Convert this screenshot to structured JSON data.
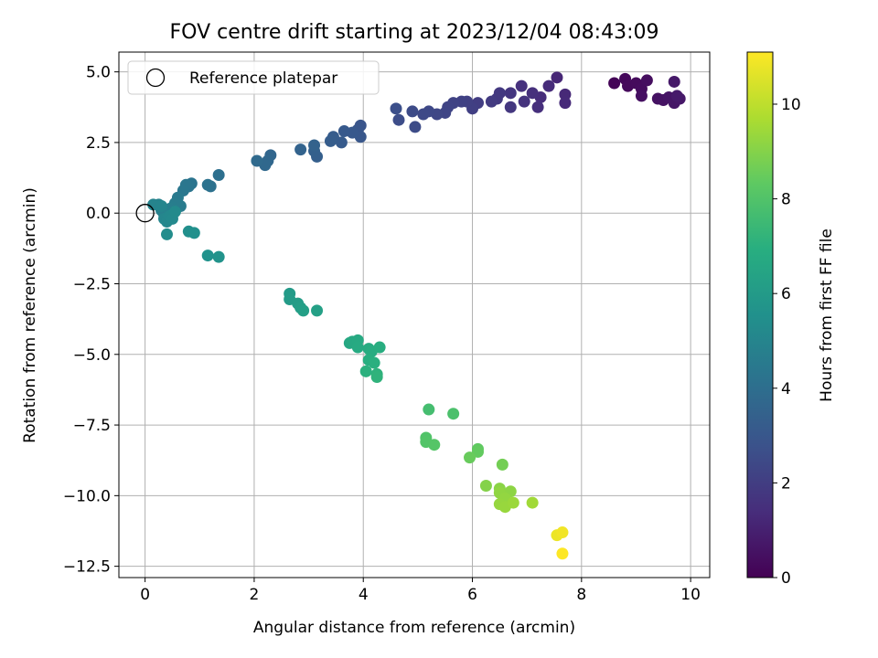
{
  "chart_data": {
    "type": "scatter",
    "title": "FOV centre drift starting at 2023/12/04 08:43:09",
    "xlabel": "Angular distance from reference (arcmin)",
    "ylabel": "Rotation from reference (arcmin)",
    "colorbar_label": "Hours from first FF file",
    "xlim": [
      -0.48,
      10.35
    ],
    "ylim": [
      -12.9,
      5.7
    ],
    "clim": [
      0,
      11.1
    ],
    "x_ticks": [
      0,
      2,
      4,
      6,
      8,
      10
    ],
    "y_ticks": [
      5.0,
      2.5,
      0.0,
      -2.5,
      -5.0,
      -7.5,
      -10.0,
      -12.5
    ],
    "x_tick_labels": [
      "0",
      "2",
      "4",
      "6",
      "8",
      "10"
    ],
    "y_tick_labels": [
      "5.0",
      "2.5",
      "0.0",
      "−2.5",
      "−5.0",
      "−7.5",
      "−10.0",
      "−12.5"
    ],
    "colorbar_ticks": [
      0,
      2,
      4,
      6,
      8,
      10
    ],
    "colorbar_tick_labels": [
      "0",
      "2",
      "4",
      "6",
      "8",
      "10"
    ],
    "colormap": "viridis",
    "grid": true,
    "legend": {
      "location": "upper-left",
      "entries": [
        "Reference platepar"
      ]
    },
    "reference_point": {
      "x": 0.0,
      "y": 0.0,
      "marker": "open-circle"
    },
    "series": [
      {
        "marker": "filled-circle",
        "points": [
          {
            "x": 8.6,
            "y": 4.6,
            "t": 0.1
          },
          {
            "x": 8.8,
            "y": 4.75,
            "t": 0.2
          },
          {
            "x": 8.85,
            "y": 4.5,
            "t": 0.25
          },
          {
            "x": 9.0,
            "y": 4.6,
            "t": 0.3
          },
          {
            "x": 9.1,
            "y": 4.4,
            "t": 0.35
          },
          {
            "x": 9.2,
            "y": 4.7,
            "t": 0.4
          },
          {
            "x": 9.1,
            "y": 4.15,
            "t": 0.45
          },
          {
            "x": 9.4,
            "y": 4.05,
            "t": 0.5
          },
          {
            "x": 9.5,
            "y": 4.0,
            "t": 0.55
          },
          {
            "x": 9.6,
            "y": 4.1,
            "t": 0.6
          },
          {
            "x": 9.7,
            "y": 3.9,
            "t": 0.65
          },
          {
            "x": 9.8,
            "y": 4.05,
            "t": 0.7
          },
          {
            "x": 9.7,
            "y": 4.65,
            "t": 0.75
          },
          {
            "x": 9.75,
            "y": 4.15,
            "t": 0.8
          },
          {
            "x": 7.55,
            "y": 4.8,
            "t": 1.2
          },
          {
            "x": 7.7,
            "y": 4.2,
            "t": 1.25
          },
          {
            "x": 7.7,
            "y": 3.9,
            "t": 1.3
          },
          {
            "x": 7.4,
            "y": 4.5,
            "t": 1.35
          },
          {
            "x": 7.25,
            "y": 4.1,
            "t": 1.4
          },
          {
            "x": 7.2,
            "y": 3.75,
            "t": 1.45
          },
          {
            "x": 7.1,
            "y": 4.25,
            "t": 1.5
          },
          {
            "x": 6.9,
            "y": 4.5,
            "t": 1.55
          },
          {
            "x": 6.95,
            "y": 3.95,
            "t": 1.6
          },
          {
            "x": 6.7,
            "y": 4.25,
            "t": 1.7
          },
          {
            "x": 6.7,
            "y": 3.75,
            "t": 1.75
          },
          {
            "x": 6.5,
            "y": 4.25,
            "t": 1.8
          },
          {
            "x": 6.45,
            "y": 4.05,
            "t": 1.85
          },
          {
            "x": 6.35,
            "y": 3.95,
            "t": 1.9
          },
          {
            "x": 6.1,
            "y": 3.9,
            "t": 2.0
          },
          {
            "x": 6.0,
            "y": 3.7,
            "t": 2.05
          },
          {
            "x": 5.9,
            "y": 3.95,
            "t": 2.1
          },
          {
            "x": 5.8,
            "y": 3.95,
            "t": 2.15
          },
          {
            "x": 5.65,
            "y": 3.9,
            "t": 2.2
          },
          {
            "x": 5.55,
            "y": 3.75,
            "t": 2.25
          },
          {
            "x": 5.5,
            "y": 3.55,
            "t": 2.3
          },
          {
            "x": 5.35,
            "y": 3.5,
            "t": 2.35
          },
          {
            "x": 5.2,
            "y": 3.6,
            "t": 2.4
          },
          {
            "x": 5.1,
            "y": 3.5,
            "t": 2.45
          },
          {
            "x": 4.9,
            "y": 3.6,
            "t": 2.5
          },
          {
            "x": 4.95,
            "y": 3.05,
            "t": 2.55
          },
          {
            "x": 4.65,
            "y": 3.3,
            "t": 2.6
          },
          {
            "x": 4.6,
            "y": 3.7,
            "t": 2.65
          },
          {
            "x": 3.95,
            "y": 3.1,
            "t": 2.9
          },
          {
            "x": 3.9,
            "y": 2.95,
            "t": 2.95
          },
          {
            "x": 3.95,
            "y": 2.7,
            "t": 3.0
          },
          {
            "x": 3.8,
            "y": 2.85,
            "t": 3.05
          },
          {
            "x": 3.65,
            "y": 2.9,
            "t": 3.1
          },
          {
            "x": 3.6,
            "y": 2.5,
            "t": 3.15
          },
          {
            "x": 3.45,
            "y": 2.7,
            "t": 3.2
          },
          {
            "x": 3.4,
            "y": 2.55,
            "t": 3.25
          },
          {
            "x": 3.15,
            "y": 2.0,
            "t": 3.35
          },
          {
            "x": 3.1,
            "y": 2.2,
            "t": 3.4
          },
          {
            "x": 3.1,
            "y": 2.4,
            "t": 3.45
          },
          {
            "x": 2.85,
            "y": 2.25,
            "t": 3.5
          },
          {
            "x": 2.3,
            "y": 2.05,
            "t": 3.65
          },
          {
            "x": 2.25,
            "y": 1.85,
            "t": 3.7
          },
          {
            "x": 2.2,
            "y": 1.7,
            "t": 3.75
          },
          {
            "x": 2.05,
            "y": 1.85,
            "t": 3.8
          },
          {
            "x": 1.35,
            "y": 1.35,
            "t": 4.05
          },
          {
            "x": 1.2,
            "y": 0.95,
            "t": 4.1
          },
          {
            "x": 1.15,
            "y": 1.0,
            "t": 4.15
          },
          {
            "x": 0.85,
            "y": 1.05,
            "t": 4.25
          },
          {
            "x": 0.8,
            "y": 0.95,
            "t": 4.3
          },
          {
            "x": 0.75,
            "y": 1.0,
            "t": 4.35
          },
          {
            "x": 0.7,
            "y": 0.8,
            "t": 4.4
          },
          {
            "x": 0.6,
            "y": 0.55,
            "t": 4.5
          },
          {
            "x": 0.65,
            "y": 0.25,
            "t": 4.55
          },
          {
            "x": 0.55,
            "y": 0.35,
            "t": 4.6
          },
          {
            "x": 0.5,
            "y": 0.2,
            "t": 4.65
          },
          {
            "x": 0.45,
            "y": 0.15,
            "t": 4.7
          },
          {
            "x": 0.4,
            "y": 0.05,
            "t": 4.75
          },
          {
            "x": 0.35,
            "y": -0.05,
            "t": 4.8
          },
          {
            "x": 0.3,
            "y": 0.1,
            "t": 4.85
          },
          {
            "x": 0.25,
            "y": 0.3,
            "t": 4.9
          },
          {
            "x": 0.15,
            "y": 0.3,
            "t": 4.95
          },
          {
            "x": 0.3,
            "y": 0.25,
            "t": 5.0
          },
          {
            "x": 0.35,
            "y": -0.2,
            "t": 5.05
          },
          {
            "x": 0.4,
            "y": -0.3,
            "t": 5.1
          },
          {
            "x": 0.45,
            "y": -0.1,
            "t": 5.15
          },
          {
            "x": 0.5,
            "y": -0.2,
            "t": 5.2
          },
          {
            "x": 0.55,
            "y": 0.05,
            "t": 5.25
          },
          {
            "x": 0.4,
            "y": -0.75,
            "t": 5.35
          },
          {
            "x": 0.8,
            "y": -0.65,
            "t": 5.45
          },
          {
            "x": 0.9,
            "y": -0.7,
            "t": 5.5
          },
          {
            "x": 1.15,
            "y": -1.5,
            "t": 5.6
          },
          {
            "x": 1.35,
            "y": -1.55,
            "t": 5.65
          },
          {
            "x": 2.65,
            "y": -2.85,
            "t": 6.0
          },
          {
            "x": 2.65,
            "y": -3.05,
            "t": 6.05
          },
          {
            "x": 2.8,
            "y": -3.2,
            "t": 6.1
          },
          {
            "x": 2.85,
            "y": -3.35,
            "t": 6.15
          },
          {
            "x": 2.9,
            "y": -3.45,
            "t": 6.2
          },
          {
            "x": 3.15,
            "y": -3.45,
            "t": 6.25
          },
          {
            "x": 3.75,
            "y": -4.6,
            "t": 6.6
          },
          {
            "x": 3.8,
            "y": -4.55,
            "t": 6.65
          },
          {
            "x": 3.9,
            "y": -4.5,
            "t": 6.7
          },
          {
            "x": 3.9,
            "y": -4.75,
            "t": 6.75
          },
          {
            "x": 4.1,
            "y": -4.8,
            "t": 6.8
          },
          {
            "x": 4.15,
            "y": -4.9,
            "t": 6.85
          },
          {
            "x": 4.3,
            "y": -4.75,
            "t": 6.9
          },
          {
            "x": 4.1,
            "y": -5.2,
            "t": 6.95
          },
          {
            "x": 4.2,
            "y": -5.3,
            "t": 7.0
          },
          {
            "x": 4.05,
            "y": -5.6,
            "t": 7.05
          },
          {
            "x": 4.25,
            "y": -5.7,
            "t": 7.1
          },
          {
            "x": 4.25,
            "y": -5.8,
            "t": 7.15
          },
          {
            "x": 5.2,
            "y": -6.95,
            "t": 7.7
          },
          {
            "x": 5.65,
            "y": -7.1,
            "t": 7.85
          },
          {
            "x": 5.15,
            "y": -7.95,
            "t": 8.0
          },
          {
            "x": 5.15,
            "y": -8.1,
            "t": 8.05
          },
          {
            "x": 5.3,
            "y": -8.2,
            "t": 8.1
          },
          {
            "x": 6.1,
            "y": -8.35,
            "t": 8.35
          },
          {
            "x": 6.1,
            "y": -8.45,
            "t": 8.4
          },
          {
            "x": 5.95,
            "y": -8.65,
            "t": 8.5
          },
          {
            "x": 6.55,
            "y": -8.9,
            "t": 8.7
          },
          {
            "x": 6.25,
            "y": -9.65,
            "t": 9.0
          },
          {
            "x": 6.5,
            "y": -9.75,
            "t": 9.1
          },
          {
            "x": 6.7,
            "y": -9.85,
            "t": 9.15
          },
          {
            "x": 6.5,
            "y": -9.9,
            "t": 9.2
          },
          {
            "x": 6.6,
            "y": -10.1,
            "t": 9.25
          },
          {
            "x": 6.5,
            "y": -10.3,
            "t": 9.3
          },
          {
            "x": 6.6,
            "y": -10.4,
            "t": 9.35
          },
          {
            "x": 6.75,
            "y": -10.25,
            "t": 9.4
          },
          {
            "x": 7.1,
            "y": -10.25,
            "t": 9.5
          },
          {
            "x": 7.55,
            "y": -11.4,
            "t": 10.8
          },
          {
            "x": 7.65,
            "y": -11.3,
            "t": 10.9
          },
          {
            "x": 7.65,
            "y": -12.05,
            "t": 11.1
          }
        ]
      }
    ]
  }
}
